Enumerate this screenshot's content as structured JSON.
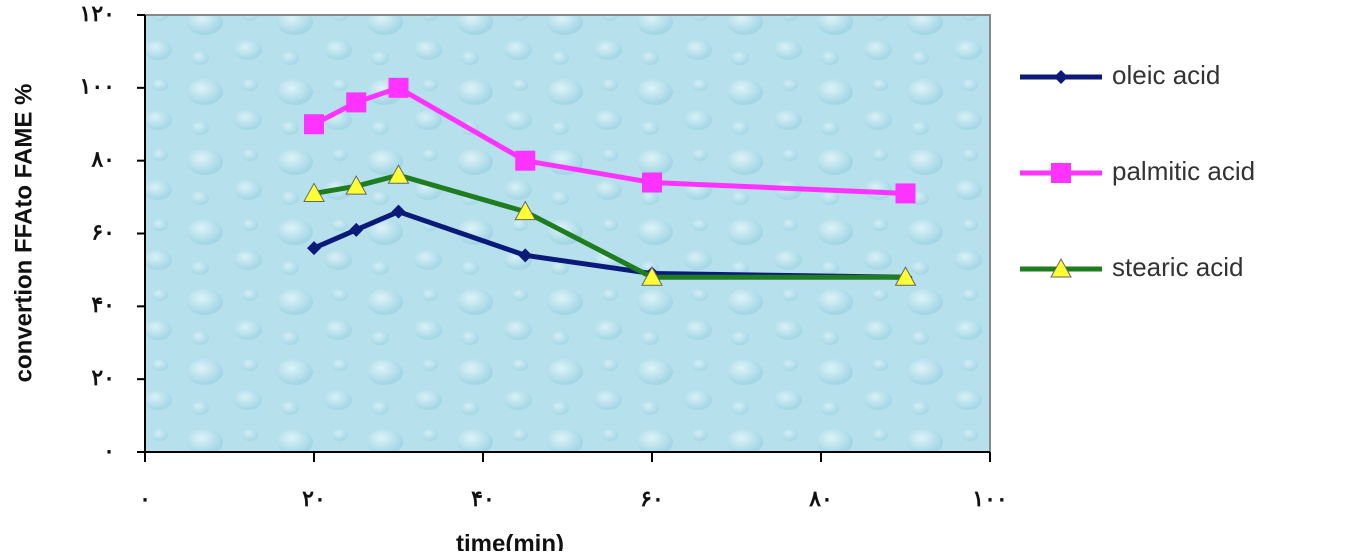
{
  "chart_data": {
    "type": "line",
    "x_label": "time(min)",
    "y_label": "convertion FFAto FAME %",
    "x": [
      20,
      25,
      30,
      45,
      60,
      90
    ],
    "series": [
      {
        "name": "oleic acid",
        "color": "#0b1a78",
        "marker": "diamond",
        "values": [
          56,
          61,
          66,
          54,
          49,
          48
        ]
      },
      {
        "name": "palmitic acid",
        "color": "#ff33ff",
        "marker": "square",
        "values": [
          90,
          96,
          100,
          80,
          74,
          71
        ]
      },
      {
        "name": "stearic acid",
        "color": "#1e7d1e",
        "marker": "triangle",
        "values": [
          71,
          73,
          76,
          66,
          48,
          48
        ]
      }
    ],
    "xlim": [
      0,
      100
    ],
    "xticks": [
      {
        "value": 0,
        "label": "۰"
      },
      {
        "value": 20,
        "label": "۲۰"
      },
      {
        "value": 40,
        "label": "۴۰"
      },
      {
        "value": 60,
        "label": "۶۰"
      },
      {
        "value": 80,
        "label": "۸۰"
      },
      {
        "value": 100,
        "label": "۱۰۰"
      }
    ],
    "ylim": [
      0,
      120
    ],
    "yticks": [
      {
        "value": 0,
        "label": "۰"
      },
      {
        "value": 20,
        "label": "۲۰"
      },
      {
        "value": 40,
        "label": "۴۰"
      },
      {
        "value": 60,
        "label": "۶۰"
      },
      {
        "value": 80,
        "label": "۸۰"
      },
      {
        "value": 100,
        "label": "۱۰۰"
      },
      {
        "value": 120,
        "label": "۱۲۰"
      }
    ],
    "legend": "right"
  }
}
